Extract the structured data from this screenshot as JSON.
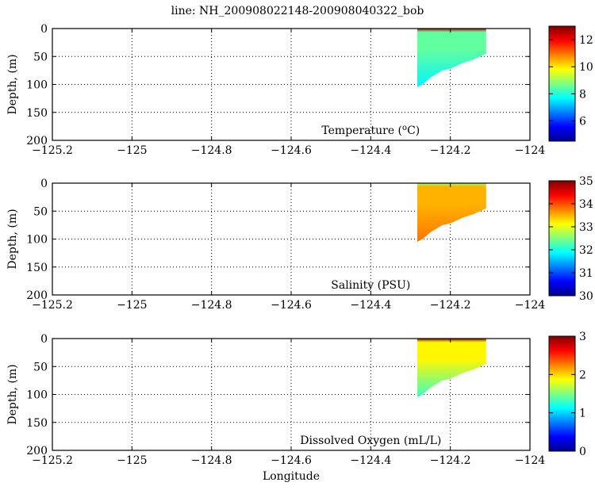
{
  "figure_title": "line: NH_200908022148-200908040322_bob",
  "colors": {
    "background": "#ffffff",
    "jet": [
      "#00008f",
      "#0000ff",
      "#0080ff",
      "#00ffff",
      "#80ff80",
      "#ffff00",
      "#ff8000",
      "#ff0000",
      "#800000"
    ]
  },
  "chart_data": [
    {
      "type": "heatmap",
      "panel": "temperature",
      "annotation": "Temperature (",
      "annotation_sup": "o",
      "annotation_end": "C)",
      "ylabel": "Depth, (m)",
      "xlabel": "",
      "xlim": [
        -125.2,
        -124.0
      ],
      "ylim": [
        200,
        0
      ],
      "xticks": [
        "−125.2",
        "−125",
        "−124.8",
        "−124.6",
        "−124.4",
        "−124.2",
        "−124"
      ],
      "xtick_values": [
        -125.2,
        -125.0,
        -124.8,
        -124.6,
        -124.4,
        -124.2,
        -124.0
      ],
      "yticks": [
        "0",
        "50",
        "100",
        "150",
        "200"
      ],
      "ytick_values": [
        0,
        50,
        100,
        150,
        200
      ],
      "colorbar": {
        "min": 4.5,
        "max": 13,
        "ticks": [
          "6",
          "8",
          "10",
          "12"
        ],
        "tick_values": [
          6,
          8,
          10,
          12
        ]
      },
      "section": {
        "lon_range": [
          -124.28,
          -124.11
        ],
        "bottom_depth_profile": [
          [
            -124.283,
            105
          ],
          [
            -124.27,
            100
          ],
          [
            -124.25,
            88
          ],
          [
            -124.22,
            75
          ],
          [
            -124.2,
            72
          ],
          [
            -124.17,
            62
          ],
          [
            -124.14,
            55
          ],
          [
            -124.11,
            45
          ]
        ],
        "surface_value": 12.5,
        "upper_value": 8.5,
        "deep_value": 7.6
      }
    },
    {
      "type": "heatmap",
      "panel": "salinity",
      "annotation": "Salinity (PSU)",
      "ylabel": "Depth, (m)",
      "xlabel": "",
      "xlim": [
        -125.2,
        -124.0
      ],
      "ylim": [
        200,
        0
      ],
      "xticks": [
        "−125.2",
        "−125",
        "−124.8",
        "−124.6",
        "−124.4",
        "−124.2",
        "−124"
      ],
      "xtick_values": [
        -125.2,
        -125.0,
        -124.8,
        -124.6,
        -124.4,
        -124.2,
        -124.0
      ],
      "yticks": [
        "0",
        "50",
        "100",
        "150",
        "200"
      ],
      "ytick_values": [
        0,
        50,
        100,
        150,
        200
      ],
      "colorbar": {
        "min": 30,
        "max": 35,
        "ticks": [
          "30",
          "31",
          "32",
          "33",
          "34",
          "35"
        ],
        "tick_values": [
          30,
          31,
          32,
          33,
          34,
          35
        ]
      },
      "section": {
        "lon_range": [
          -124.28,
          -124.11
        ],
        "bottom_depth_profile": [
          [
            -124.283,
            105
          ],
          [
            -124.27,
            100
          ],
          [
            -124.25,
            88
          ],
          [
            -124.22,
            75
          ],
          [
            -124.2,
            72
          ],
          [
            -124.17,
            62
          ],
          [
            -124.14,
            55
          ],
          [
            -124.11,
            45
          ]
        ],
        "surface_value": 32.6,
        "upper_value": 33.5,
        "deep_value": 33.8
      }
    },
    {
      "type": "heatmap",
      "panel": "oxygen",
      "annotation": "Dissolved Oxygen (mL/L)",
      "ylabel": "Depth, (m)",
      "xlabel": "Longitude",
      "xlim": [
        -125.2,
        -124.0
      ],
      "ylim": [
        200,
        0
      ],
      "xticks": [
        "−125.2",
        "−125",
        "−124.8",
        "−124.6",
        "−124.4",
        "−124.2",
        "−124"
      ],
      "xtick_values": [
        -125.2,
        -125.0,
        -124.8,
        -124.6,
        -124.4,
        -124.2,
        -124.0
      ],
      "yticks": [
        "0",
        "50",
        "100",
        "150",
        "200"
      ],
      "ytick_values": [
        0,
        50,
        100,
        150,
        200
      ],
      "colorbar": {
        "min": 0,
        "max": 3,
        "ticks": [
          "0",
          "1",
          "2",
          "3"
        ],
        "tick_values": [
          0,
          1,
          2,
          3
        ]
      },
      "section": {
        "lon_range": [
          -124.28,
          -124.11
        ],
        "bottom_depth_profile": [
          [
            -124.283,
            105
          ],
          [
            -124.27,
            100
          ],
          [
            -124.25,
            88
          ],
          [
            -124.22,
            75
          ],
          [
            -124.2,
            72
          ],
          [
            -124.17,
            62
          ],
          [
            -124.14,
            55
          ],
          [
            -124.11,
            45
          ]
        ],
        "surface_value": 3.0,
        "upper_value": 1.9,
        "deep_value": 1.3
      }
    }
  ]
}
